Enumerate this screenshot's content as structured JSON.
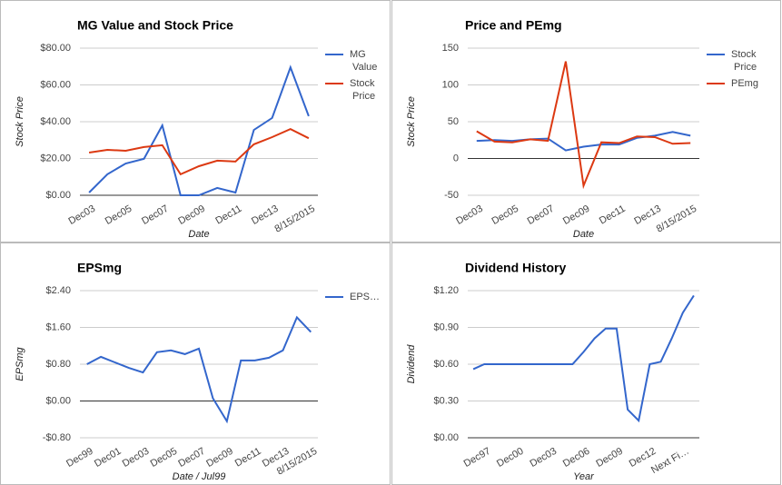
{
  "chart_data": [
    {
      "type": "line",
      "title": "MG Value and Stock Price",
      "y_label": "Stock Price",
      "x_label": "Date",
      "categories": [
        "Dec03",
        null,
        "Dec05",
        null,
        "Dec07",
        null,
        "Dec09",
        null,
        "Dec11",
        null,
        "Dec13",
        null,
        "8/15/2015"
      ],
      "series": [
        {
          "name": "MG Value",
          "color": "#3366cc",
          "values": [
            1.5,
            11.4,
            17.3,
            19.8,
            38,
            0,
            0,
            4,
            1.5,
            35.5,
            42,
            69.6,
            43
          ]
        },
        {
          "name": "Stock Price",
          "color": "#dc3912",
          "values": [
            23.2,
            24.7,
            24.2,
            26.2,
            27.2,
            11.4,
            15.8,
            18.8,
            18.3,
            27.7,
            31.6,
            36,
            31
          ]
        }
      ],
      "ylim": [
        0,
        80
      ],
      "yticks": [
        {
          "value": 0,
          "label": "$0.00"
        },
        {
          "value": 20,
          "label": "$20.00"
        },
        {
          "value": 40,
          "label": "$40.00"
        },
        {
          "value": 60,
          "label": "$60.00"
        },
        {
          "value": 80,
          "label": "$80.00"
        }
      ],
      "grid": true,
      "legend": "right"
    },
    {
      "type": "line",
      "title": "Price and PEmg",
      "y_label": "Stock Price",
      "x_label": "Date",
      "categories": [
        "Dec03",
        null,
        "Dec05",
        null,
        "Dec07",
        null,
        "Dec09",
        null,
        "Dec11",
        null,
        "Dec13",
        null,
        "8/15/2015"
      ],
      "series": [
        {
          "name": "Stock Price",
          "color": "#3366cc",
          "values": [
            24,
            25,
            24,
            26,
            27,
            11,
            16,
            19,
            19,
            28,
            31,
            36,
            31
          ]
        },
        {
          "name": "PEmg",
          "color": "#dc3912",
          "values": [
            37,
            23,
            22,
            26,
            24,
            132,
            -37,
            22,
            21,
            30,
            29,
            20,
            21
          ]
        }
      ],
      "ylim": [
        -50,
        150
      ],
      "yticks": [
        -50,
        0,
        50,
        100,
        150
      ],
      "grid": true,
      "legend": "right"
    },
    {
      "type": "line",
      "title": "EPSmg",
      "y_label": "EPSmg",
      "x_label": "Date / Jul99",
      "categories": [
        "Dec99",
        null,
        "Dec01",
        null,
        "Dec03",
        null,
        "Dec05",
        null,
        "Dec07",
        null,
        "Dec09",
        null,
        "Dec11",
        null,
        "Dec13",
        null,
        "8/15/2015"
      ],
      "series": [
        {
          "name": "EPS…",
          "color": "#3366cc",
          "values": [
            0.8,
            0.96,
            0.84,
            0.72,
            0.62,
            1.06,
            1.1,
            1.02,
            1.14,
            0.06,
            -0.44,
            0.88,
            0.88,
            0.94,
            1.1,
            1.82,
            1.5
          ]
        }
      ],
      "ylim": [
        -0.8,
        2.4
      ],
      "yticks": [
        {
          "value": -0.8,
          "label": "-$0.80"
        },
        {
          "value": 0,
          "label": "$0.00"
        },
        {
          "value": 0.8,
          "label": "$0.80"
        },
        {
          "value": 1.6,
          "label": "$1.60"
        },
        {
          "value": 2.4,
          "label": "$2.40"
        }
      ],
      "grid": true,
      "legend": "right"
    },
    {
      "type": "line",
      "title": "Dividend History",
      "y_label": "Dividend",
      "x_label": "Year",
      "categories": [
        null,
        "Dec97",
        null,
        null,
        "Dec00",
        null,
        null,
        "Dec03",
        null,
        null,
        "Dec06",
        null,
        null,
        "Dec09",
        null,
        null,
        "Dec12",
        null,
        null,
        "Next Fi…",
        null
      ],
      "values": [
        0.56,
        0.6,
        0.6,
        0.6,
        0.6,
        0.6,
        0.6,
        0.6,
        0.6,
        0.6,
        0.7,
        0.81,
        0.89,
        0.89,
        0.23,
        0.14,
        0.6,
        0.62,
        0.81,
        1.02,
        1.16
      ],
      "color": "#3366cc",
      "ylim": [
        0,
        1.2
      ],
      "yticks": [
        {
          "value": 0,
          "label": "$0.00"
        },
        {
          "value": 0.3,
          "label": "$0.30"
        },
        {
          "value": 0.6,
          "label": "$0.60"
        },
        {
          "value": 0.9,
          "label": "$0.90"
        },
        {
          "value": 1.2,
          "label": "$1.20"
        }
      ],
      "grid": true
    }
  ]
}
